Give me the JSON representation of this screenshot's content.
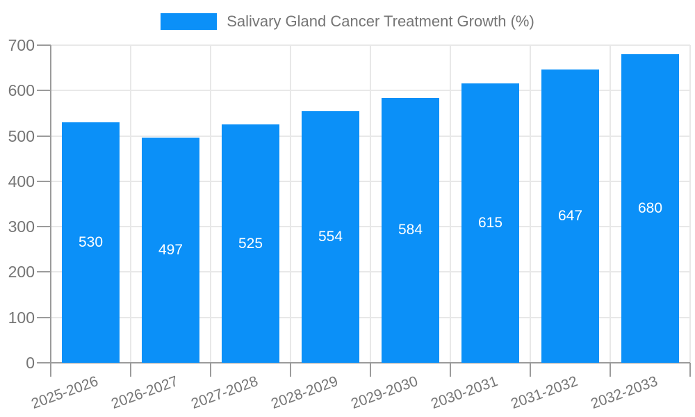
{
  "legend": {
    "label": "Salivary Gland Cancer Treatment Growth (%)"
  },
  "chart_data": {
    "type": "bar",
    "title": "Salivary Gland Cancer Treatment Growth (%)",
    "categories": [
      "2025-2026",
      "2026-2027",
      "2027-2028",
      "2028-2029",
      "2029-2030",
      "2030-2031",
      "2031-2032",
      "2032-2033"
    ],
    "values": [
      530,
      497,
      525,
      554,
      584,
      615,
      647,
      680
    ],
    "value_labels": [
      "530",
      "497",
      "525",
      "554",
      "584",
      "615",
      "647",
      "680"
    ],
    "xlabel": "",
    "ylabel": "",
    "ylim": [
      0,
      700
    ],
    "ytick_step": 100,
    "yticks": [
      0,
      100,
      200,
      300,
      400,
      500,
      600,
      700
    ],
    "grid": true,
    "legend_position": "top",
    "x_label_rotation_deg": -20,
    "colors": {
      "bar": "#0b90f8",
      "value_label": "#ffffff",
      "axis_text": "#757575",
      "axis_line": "#9b9b9b",
      "gridline": "#e8e8e8",
      "background": "#ffffff"
    }
  }
}
